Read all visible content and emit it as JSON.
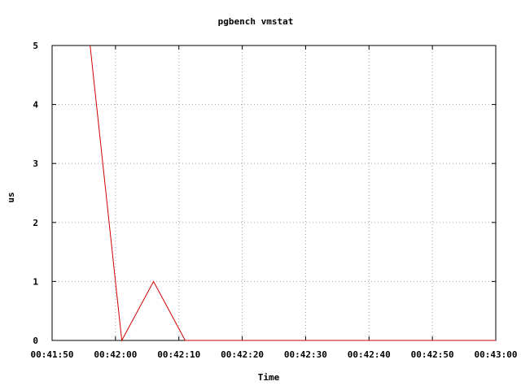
{
  "chart_data": {
    "type": "line",
    "title": "pgbench vmstat",
    "xlabel": "Time",
    "ylabel": "us",
    "xlim": [
      "00:41:50",
      "00:43:00"
    ],
    "ylim": [
      0,
      5
    ],
    "x_tick_labels": [
      "00:41:50",
      "00:42:00",
      "00:42:10",
      "00:42:20",
      "00:42:30",
      "00:42:40",
      "00:42:50",
      "00:43:00"
    ],
    "y_tick_labels": [
      "0",
      "1",
      "2",
      "3",
      "4",
      "5"
    ],
    "grid": true,
    "series": [
      {
        "color": "#cc0000",
        "points": [
          {
            "x": "00:41:56",
            "y": 5
          },
          {
            "x": "00:42:01",
            "y": 0
          },
          {
            "x": "00:42:06",
            "y": 1
          },
          {
            "x": "00:42:11",
            "y": 0
          },
          {
            "x": "00:42:16",
            "y": 0
          },
          {
            "x": "00:42:21",
            "y": 0
          },
          {
            "x": "00:42:26",
            "y": 0
          },
          {
            "x": "00:42:31",
            "y": 0
          },
          {
            "x": "00:42:36",
            "y": 0
          },
          {
            "x": "00:42:41",
            "y": 0
          },
          {
            "x": "00:42:46",
            "y": 0
          },
          {
            "x": "00:42:51",
            "y": 0
          },
          {
            "x": "00:42:56",
            "y": 0
          },
          {
            "x": "00:43:00",
            "y": 0
          }
        ]
      }
    ]
  }
}
